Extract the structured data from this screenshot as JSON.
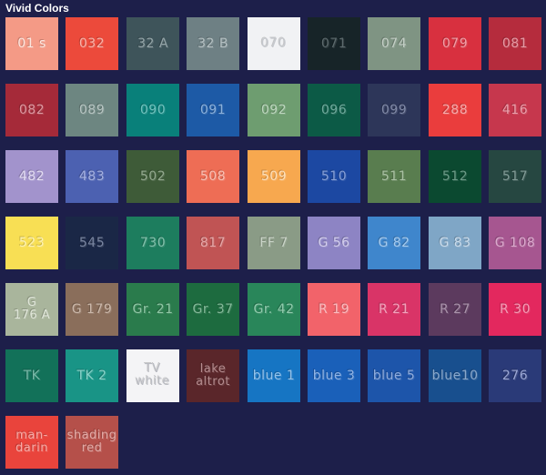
{
  "title": "Vivid Colors",
  "swatches": [
    {
      "label": "01 s",
      "color": "#f49a86",
      "text": "#fde7e0"
    },
    {
      "label": "032",
      "color": "#ec4a3b",
      "text": "#f7b3aa"
    },
    {
      "label": "32 A",
      "color": "#3e545a",
      "text": "#94a5a8"
    },
    {
      "label": "32 B",
      "color": "#6e8084",
      "text": "#b4c0c2"
    },
    {
      "label": "070",
      "color": "#f1f2f4",
      "text": "#c4c7cc"
    },
    {
      "label": "071",
      "color": "#172428",
      "text": "#5b696c"
    },
    {
      "label": "074",
      "color": "#7f9483",
      "text": "#c4cfc6"
    },
    {
      "label": "079",
      "color": "#d8303f",
      "text": "#f09ea6"
    },
    {
      "label": "081",
      "color": "#b52c3d",
      "text": "#e69aa4"
    },
    {
      "label": "082",
      "color": "#a52a39",
      "text": "#dd98a0"
    },
    {
      "label": "089",
      "color": "#6d8681",
      "text": "#b7c5c2"
    },
    {
      "label": "090",
      "color": "#09807a",
      "text": "#6fc2bd"
    },
    {
      "label": "091",
      "color": "#1d5aa6",
      "text": "#8ab0db"
    },
    {
      "label": "092",
      "color": "#6e9d70",
      "text": "#bcd6bd"
    },
    {
      "label": "096",
      "color": "#0c5a46",
      "text": "#6ea99b"
    },
    {
      "label": "099",
      "color": "#2d3659",
      "text": "#7f88a6"
    },
    {
      "label": "288",
      "color": "#ea3d3d",
      "text": "#f6aaaa"
    },
    {
      "label": "416",
      "color": "#c6374d",
      "text": "#ea9eaa"
    },
    {
      "label": "482",
      "color": "#a293cc",
      "text": "#e3dcf2"
    },
    {
      "label": "483",
      "color": "#4c61b1",
      "text": "#a5b1e0"
    },
    {
      "label": "502",
      "color": "#3e5b38",
      "text": "#93a98e"
    },
    {
      "label": "508",
      "color": "#ee6d55",
      "text": "#f9c0b4"
    },
    {
      "label": "509",
      "color": "#f7a84f",
      "text": "#fde0bb"
    },
    {
      "label": "510",
      "color": "#1c48a2",
      "text": "#869fd6"
    },
    {
      "label": "511",
      "color": "#597d4f",
      "text": "#a9c1a2"
    },
    {
      "label": "512",
      "color": "#0b4930",
      "text": "#6a9a86"
    },
    {
      "label": "517",
      "color": "#264741",
      "text": "#7f9a95"
    },
    {
      "label": "523",
      "color": "#f8df54",
      "text": "#fcf2b4"
    },
    {
      "label": "545",
      "color": "#1a2746",
      "text": "#7884a0"
    },
    {
      "label": "730",
      "color": "#1d7d5e",
      "text": "#82c1ab"
    },
    {
      "label": "817",
      "color": "#c05454",
      "text": "#e6a8a8"
    },
    {
      "label": "FF 7",
      "color": "#8a9b86",
      "text": "#cad4c8"
    },
    {
      "label": "G 56",
      "color": "#8d84c4",
      "text": "#d4cfee"
    },
    {
      "label": "G 82",
      "color": "#3f86cc",
      "text": "#a6cbee"
    },
    {
      "label": "G 83",
      "color": "#7fa6c6",
      "text": "#cbdceb"
    },
    {
      "label": "G 108",
      "color": "#a65690",
      "text": "#dba9cd"
    },
    {
      "label": "G\n176 A",
      "color": "#a9b59c",
      "text": "#e1e7da"
    },
    {
      "label": "G 179",
      "color": "#8a6e5b",
      "text": "#cbb7a9"
    },
    {
      "label": "Gr. 21",
      "color": "#2a7b4c",
      "text": "#8fc6a4"
    },
    {
      "label": "Gr. 37",
      "color": "#1d6b3f",
      "text": "#83b998"
    },
    {
      "label": "Gr. 42",
      "color": "#29865a",
      "text": "#8fcaab"
    },
    {
      "label": "R 19",
      "color": "#f2636a",
      "text": "#fbbcbf"
    },
    {
      "label": "R 21",
      "color": "#d93467",
      "text": "#f2a2bb"
    },
    {
      "label": "R 27",
      "color": "#5c3a5e",
      "text": "#a992aa"
    },
    {
      "label": "R 30",
      "color": "#e3285e",
      "text": "#f59cb5"
    },
    {
      "label": "TK",
      "color": "#127159",
      "text": "#78b7a6"
    },
    {
      "label": "TK 2",
      "color": "#199486",
      "text": "#88d2c8"
    },
    {
      "label": "TV\nwhite",
      "color": "#f4f4f6",
      "text": "#b9bbc2"
    },
    {
      "label": "lake\naltrot",
      "color": "#5a262a",
      "text": "#b58b8e"
    },
    {
      "label": "blue 1",
      "color": "#1675c3",
      "text": "#93c2ea"
    },
    {
      "label": "blue 3",
      "color": "#1a60b9",
      "text": "#90b3e4"
    },
    {
      "label": "blue 5",
      "color": "#1d55aa",
      "text": "#8eabdc"
    },
    {
      "label": "blue10",
      "color": "#184f8e",
      "text": "#89a8cc"
    },
    {
      "label": "276",
      "color": "#2a3a78",
      "text": "#9aa6d4"
    },
    {
      "label": "man-\ndarin",
      "color": "#e9443c",
      "text": "#f6aaa5"
    },
    {
      "label": "shading\nred",
      "color": "#b5504a",
      "text": "#e2aaa6"
    }
  ]
}
